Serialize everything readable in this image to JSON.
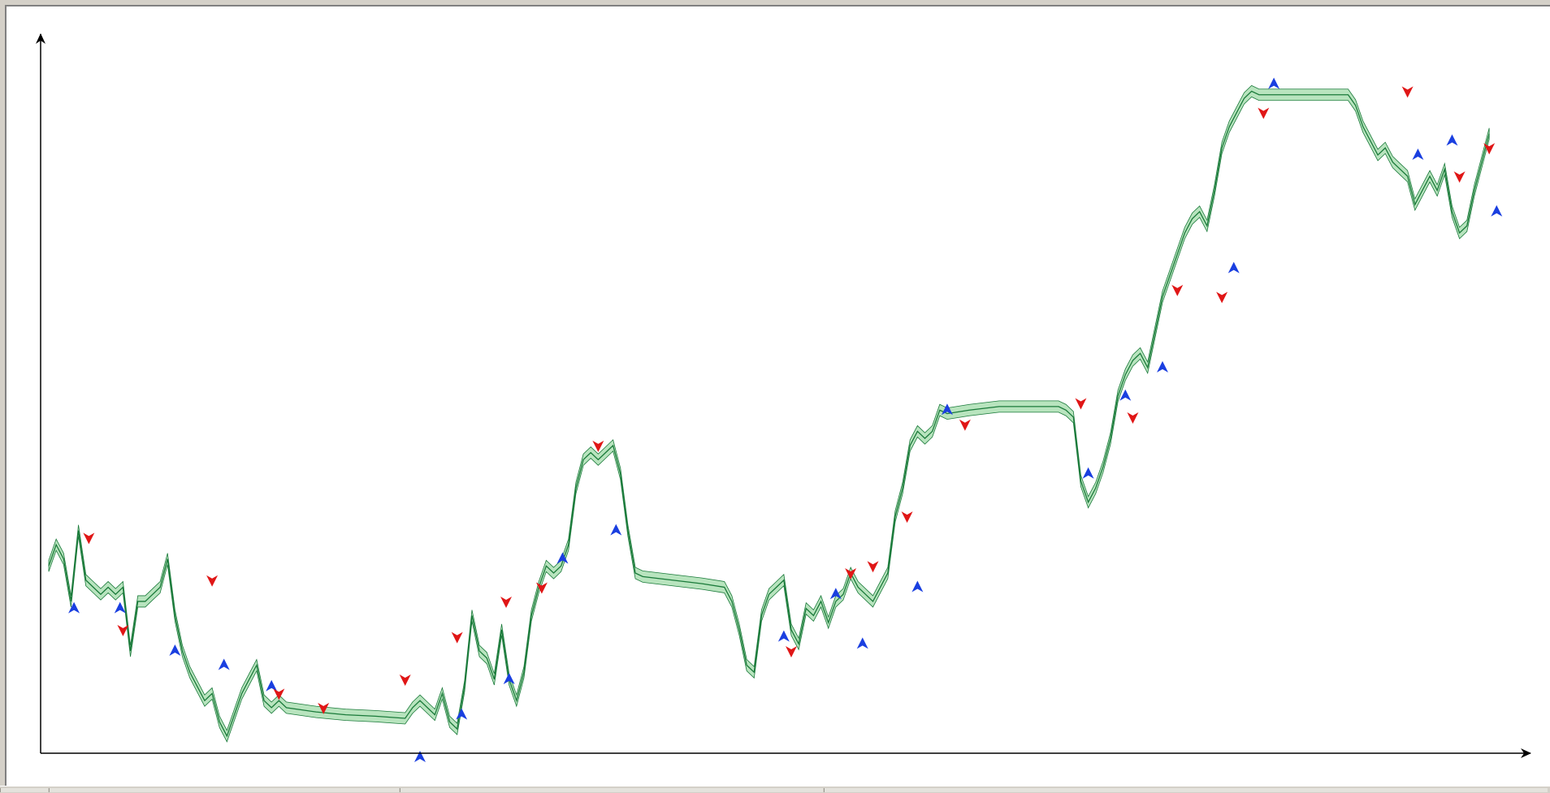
{
  "chart_data": {
    "type": "line",
    "title": "",
    "xlabel": "",
    "ylabel": "",
    "grid": false,
    "legend": "none",
    "xlim": [
      0,
      1000
    ],
    "ylim": [
      0,
      100
    ],
    "colors": {
      "line": "#1a7a3a",
      "band_fill": "#b8e4be",
      "buy_marker": "#1a3fe0",
      "sell_marker": "#e01616",
      "axis": "#000000"
    },
    "series": [
      {
        "values": [
          [
            0,
            27
          ],
          [
            5,
            30
          ],
          [
            10,
            28
          ],
          [
            15,
            22
          ],
          [
            20,
            32
          ],
          [
            25,
            25
          ],
          [
            30,
            24
          ],
          [
            35,
            23
          ],
          [
            40,
            24
          ],
          [
            45,
            23
          ],
          [
            50,
            24
          ],
          [
            55,
            15
          ],
          [
            60,
            22
          ],
          [
            65,
            22
          ],
          [
            70,
            23
          ],
          [
            75,
            24
          ],
          [
            80,
            28
          ],
          [
            85,
            20
          ],
          [
            90,
            15
          ],
          [
            95,
            12
          ],
          [
            100,
            10
          ],
          [
            105,
            8
          ],
          [
            110,
            9
          ],
          [
            115,
            5
          ],
          [
            120,
            3
          ],
          [
            125,
            6
          ],
          [
            130,
            9
          ],
          [
            135,
            11
          ],
          [
            140,
            13
          ],
          [
            145,
            8
          ],
          [
            150,
            7
          ],
          [
            155,
            8
          ],
          [
            160,
            7
          ],
          [
            170,
            6.7
          ],
          [
            180,
            6.4
          ],
          [
            200,
            6
          ],
          [
            220,
            5.8
          ],
          [
            240,
            5.5
          ],
          [
            245,
            7
          ],
          [
            250,
            8
          ],
          [
            255,
            7
          ],
          [
            260,
            6
          ],
          [
            265,
            9
          ],
          [
            270,
            5
          ],
          [
            275,
            4
          ],
          [
            280,
            10
          ],
          [
            285,
            20
          ],
          [
            290,
            15
          ],
          [
            295,
            14
          ],
          [
            300,
            11
          ],
          [
            305,
            18
          ],
          [
            310,
            11
          ],
          [
            315,
            8
          ],
          [
            320,
            12
          ],
          [
            325,
            20
          ],
          [
            330,
            24
          ],
          [
            335,
            27
          ],
          [
            340,
            26
          ],
          [
            345,
            27
          ],
          [
            350,
            30
          ],
          [
            355,
            38
          ],
          [
            360,
            42
          ],
          [
            365,
            43
          ],
          [
            370,
            42
          ],
          [
            375,
            43
          ],
          [
            380,
            44
          ],
          [
            385,
            40
          ],
          [
            390,
            32
          ],
          [
            395,
            26
          ],
          [
            400,
            25.5
          ],
          [
            420,
            25
          ],
          [
            440,
            24.5
          ],
          [
            455,
            24
          ],
          [
            460,
            22
          ],
          [
            465,
            18
          ],
          [
            470,
            13
          ],
          [
            475,
            12
          ],
          [
            480,
            20
          ],
          [
            485,
            23
          ],
          [
            490,
            24
          ],
          [
            495,
            25
          ],
          [
            500,
            18
          ],
          [
            505,
            16
          ],
          [
            510,
            21
          ],
          [
            515,
            20
          ],
          [
            520,
            22
          ],
          [
            525,
            19
          ],
          [
            530,
            22
          ],
          [
            535,
            23
          ],
          [
            540,
            26
          ],
          [
            545,
            24
          ],
          [
            550,
            23
          ],
          [
            555,
            22
          ],
          [
            560,
            24
          ],
          [
            565,
            26
          ],
          [
            570,
            34
          ],
          [
            575,
            38
          ],
          [
            580,
            44
          ],
          [
            585,
            46
          ],
          [
            590,
            45
          ],
          [
            595,
            46
          ],
          [
            600,
            49
          ],
          [
            605,
            48.5
          ],
          [
            620,
            49
          ],
          [
            640,
            49.5
          ],
          [
            660,
            49.5
          ],
          [
            680,
            49.5
          ],
          [
            685,
            49
          ],
          [
            690,
            48
          ],
          [
            695,
            39
          ],
          [
            700,
            36
          ],
          [
            705,
            38
          ],
          [
            710,
            41
          ],
          [
            715,
            45
          ],
          [
            720,
            51
          ],
          [
            725,
            54
          ],
          [
            730,
            56
          ],
          [
            735,
            57
          ],
          [
            740,
            55
          ],
          [
            745,
            60
          ],
          [
            750,
            65
          ],
          [
            755,
            68
          ],
          [
            760,
            71
          ],
          [
            765,
            74
          ],
          [
            770,
            76
          ],
          [
            775,
            77
          ],
          [
            780,
            75
          ],
          [
            785,
            80
          ],
          [
            790,
            86
          ],
          [
            795,
            89
          ],
          [
            800,
            91
          ],
          [
            805,
            93
          ],
          [
            810,
            94
          ],
          [
            815,
            93.5
          ],
          [
            820,
            93.5
          ],
          [
            840,
            93.5
          ],
          [
            860,
            93.5
          ],
          [
            875,
            93.5
          ],
          [
            880,
            92
          ],
          [
            885,
            89
          ],
          [
            890,
            87
          ],
          [
            895,
            85
          ],
          [
            900,
            86
          ],
          [
            905,
            84
          ],
          [
            910,
            83
          ],
          [
            915,
            82
          ],
          [
            920,
            78
          ],
          [
            925,
            80
          ],
          [
            930,
            82
          ],
          [
            935,
            80
          ],
          [
            940,
            83
          ],
          [
            945,
            77
          ],
          [
            950,
            74
          ],
          [
            955,
            75
          ],
          [
            960,
            80
          ],
          [
            965,
            84
          ],
          [
            970,
            88
          ]
        ]
      }
    ],
    "buy_signals": [
      [
        17,
        21
      ],
      [
        48,
        21
      ],
      [
        85,
        15
      ],
      [
        118,
        13
      ],
      [
        150,
        10
      ],
      [
        250,
        0
      ],
      [
        278,
        6
      ],
      [
        310,
        11
      ],
      [
        346,
        28
      ],
      [
        382,
        32
      ],
      [
        495,
        17
      ],
      [
        530,
        23
      ],
      [
        548,
        16
      ],
      [
        585,
        24
      ],
      [
        605,
        49
      ],
      [
        700,
        40
      ],
      [
        725,
        51
      ],
      [
        750,
        55
      ],
      [
        798,
        69
      ],
      [
        825,
        95
      ],
      [
        922,
        85
      ],
      [
        945,
        87
      ],
      [
        975,
        77
      ]
    ],
    "sell_signals": [
      [
        27,
        31
      ],
      [
        50,
        18
      ],
      [
        110,
        25
      ],
      [
        155,
        9
      ],
      [
        185,
        7
      ],
      [
        240,
        11
      ],
      [
        275,
        17
      ],
      [
        308,
        22
      ],
      [
        332,
        24
      ],
      [
        370,
        44
      ],
      [
        500,
        15
      ],
      [
        540,
        26
      ],
      [
        555,
        27
      ],
      [
        578,
        34
      ],
      [
        617,
        47
      ],
      [
        695,
        50
      ],
      [
        730,
        48
      ],
      [
        760,
        66
      ],
      [
        790,
        65
      ],
      [
        818,
        91
      ],
      [
        915,
        94
      ],
      [
        950,
        82
      ],
      [
        970,
        86
      ]
    ]
  }
}
